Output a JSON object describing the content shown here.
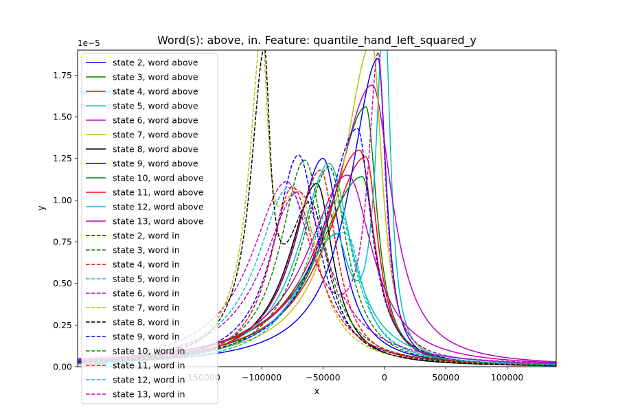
{
  "chart_data": {
    "type": "line",
    "title": "Word(s): above, in. Feature: quantile_hand_left_squared_y",
    "xlabel": "x",
    "ylabel": "y",
    "y_offset_label": "1e−5",
    "xlim": [
      -250000,
      140000
    ],
    "ylim": [
      0,
      1.9
    ],
    "x_ticks": [
      -150000,
      -100000,
      -50000,
      0,
      50000,
      100000
    ],
    "x_tick_labels": [
      "−150000",
      "−100000",
      "−50000",
      "0",
      "50000",
      "100000"
    ],
    "y_ticks": [
      0,
      0.25,
      0.5,
      0.75,
      1.0,
      1.25,
      1.5,
      1.75
    ],
    "y_tick_labels": [
      "0.00",
      "0.25",
      "0.50",
      "0.75",
      "1.00",
      "1.25",
      "1.50",
      "1.75"
    ],
    "grid": false,
    "legend_position": "upper-left",
    "series": [
      {
        "name": "state 2, word above",
        "color": "#0000ff",
        "style": "solid",
        "peaks": [
          [
            -50000,
            1.25,
            28000,
            18000
          ]
        ]
      },
      {
        "name": "state 3, word above",
        "color": "#008000",
        "style": "solid",
        "peaks": [
          [
            -15000,
            1.56,
            35000,
            11000
          ]
        ]
      },
      {
        "name": "state 4, word above",
        "color": "#ff0000",
        "style": "solid",
        "peaks": [
          [
            -15000,
            1.26,
            40000,
            12000
          ]
        ]
      },
      {
        "name": "state 5, word above",
        "color": "#00bfbf",
        "style": "solid",
        "peaks": [
          [
            -40000,
            0.72,
            38000,
            14000
          ],
          [
            0,
            2.1,
            8000,
            6000
          ]
        ]
      },
      {
        "name": "state 6, word above",
        "color": "#bf00bf",
        "style": "solid",
        "peaks": [
          [
            -10000,
            1.69,
            38000,
            20000
          ]
        ]
      },
      {
        "name": "state 7, word above",
        "color": "#bfbf00",
        "style": "solid",
        "peaks": [
          [
            -10000,
            1.95,
            30000,
            10000
          ]
        ]
      },
      {
        "name": "state 8, word above",
        "color": "#000000",
        "style": "solid",
        "peaks": [
          [
            -55000,
            1.1,
            28000,
            16000
          ]
        ]
      },
      {
        "name": "state 9, word above",
        "color": "#0000ff",
        "style": "solid",
        "peaks": [
          [
            -5000,
            1.85,
            28000,
            8000
          ]
        ]
      },
      {
        "name": "state 10, word above",
        "color": "#008000",
        "style": "solid",
        "peaks": [
          [
            -18000,
            1.14,
            45000,
            14000
          ]
        ]
      },
      {
        "name": "state 11, word above",
        "color": "#ff0000",
        "style": "solid",
        "peaks": [
          [
            -20000,
            1.3,
            40000,
            14000
          ]
        ]
      },
      {
        "name": "state 12, word above",
        "color": "#00bfbf",
        "style": "solid",
        "peaks": [
          [
            -45000,
            1.22,
            30000,
            22000
          ]
        ]
      },
      {
        "name": "state 13, word above",
        "color": "#bf00bf",
        "style": "solid",
        "peaks": [
          [
            -30000,
            1.15,
            40000,
            25000
          ]
        ]
      },
      {
        "name": "state 2, word in",
        "color": "#0000ff",
        "style": "dashed",
        "peaks": [
          [
            -70000,
            1.27,
            24000,
            20000
          ]
        ]
      },
      {
        "name": "state 3, word in",
        "color": "#008000",
        "style": "dashed",
        "peaks": [
          [
            -65000,
            1.24,
            24000,
            20000
          ]
        ]
      },
      {
        "name": "state 4, word in",
        "color": "#ff0000",
        "style": "dashed",
        "peaks": [
          [
            -52000,
            1.18,
            28000,
            16000
          ]
        ]
      },
      {
        "name": "state 5, word in",
        "color": "#00bfbf",
        "style": "dashed",
        "peaks": [
          [
            -80000,
            0.9,
            30000,
            22000
          ],
          [
            -30000,
            0.65,
            30000,
            15000
          ]
        ]
      },
      {
        "name": "state 6, word in",
        "color": "#bf00bf",
        "style": "dashed",
        "peaks": [
          [
            -80000,
            1.08,
            35000,
            25000
          ],
          [
            -5000,
            1.78,
            10000,
            7000
          ]
        ]
      },
      {
        "name": "state 7, word in",
        "color": "#bfbf00",
        "style": "dashed",
        "peaks": [
          [
            -100000,
            1.62,
            12000,
            6000
          ],
          [
            -70000,
            1.0,
            25000,
            20000
          ]
        ]
      },
      {
        "name": "state 8, word in",
        "color": "#000000",
        "style": "dashed",
        "peaks": [
          [
            -98000,
            1.63,
            13000,
            6000
          ],
          [
            -60000,
            0.95,
            25000,
            18000
          ]
        ]
      },
      {
        "name": "state 9, word in",
        "color": "#0000ff",
        "style": "dashed",
        "peaks": [
          [
            -22000,
            1.43,
            33000,
            14000
          ]
        ]
      },
      {
        "name": "state 10, word in",
        "color": "#008000",
        "style": "dashed",
        "peaks": [
          [
            -45000,
            1.2,
            28000,
            18000
          ]
        ]
      },
      {
        "name": "state 11, word in",
        "color": "#ff0000",
        "style": "dashed",
        "peaks": [
          [
            -75000,
            1.08,
            22000,
            24000
          ]
        ]
      },
      {
        "name": "state 12, word in",
        "color": "#00bfbf",
        "style": "dashed",
        "peaks": [
          [
            -40000,
            1.0,
            30000,
            20000
          ]
        ]
      },
      {
        "name": "state 13, word in",
        "color": "#bf00bf",
        "style": "dashed",
        "peaks": [
          [
            -70000,
            1.05,
            35000,
            30000
          ]
        ]
      }
    ]
  }
}
